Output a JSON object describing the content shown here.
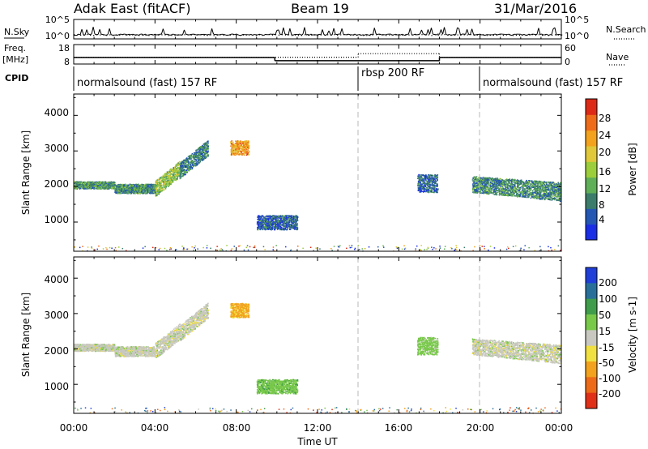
{
  "header": {
    "station": "Adak East (fitACF)",
    "beam": "Beam 19",
    "date": "31/Mar/2016"
  },
  "noise_panel": {
    "left_label": "N.Sky",
    "right_label": "N.Search",
    "left_ticks": [
      "10^5",
      "10^0"
    ],
    "right_ticks": [
      "10^5",
      "10^0"
    ]
  },
  "freq_panel": {
    "left_label_line1": "Freq.",
    "left_label_line2": "[MHz]",
    "left_ticks": [
      "18",
      "8"
    ],
    "right_label": "Nave",
    "right_ticks": [
      "60",
      "0"
    ]
  },
  "cpid_panel": {
    "label": "CPID",
    "segments": [
      {
        "label": "normalsound (fast) 157 RF",
        "start_hour": 0.0
      },
      {
        "label": "rbsp 200 RF",
        "start_hour": 14.0
      },
      {
        "label": "normalsound (fast) 157 RF",
        "start_hour": 20.0
      }
    ]
  },
  "x_axis": {
    "label": "Time UT",
    "tick_labels": [
      "00:00",
      "04:00",
      "08:00",
      "12:00",
      "16:00",
      "20:00",
      "00:00"
    ]
  },
  "power_panel": {
    "ylabel": "Slant Range [km]",
    "cbar_label": "Power [dB]",
    "y_ticks": [
      "1000",
      "2000",
      "3000",
      "4000"
    ],
    "cbar_ticks": [
      "4",
      "8",
      "12",
      "16",
      "20",
      "24",
      "28"
    ]
  },
  "velocity_panel": {
    "ylabel": "Slant Range [km]",
    "cbar_label": "Velocity [m s-1]",
    "y_ticks": [
      "1000",
      "2000",
      "3000",
      "4000"
    ],
    "cbar_ticks": [
      "200",
      "100",
      "50",
      "15",
      "-15",
      "-50",
      "-100",
      "-200"
    ]
  },
  "colors": {
    "power_scale": [
      "#1a2ee6",
      "#2456b4",
      "#3b7c6a",
      "#5fae58",
      "#9ccd3a",
      "#e0c83a",
      "#f2a21c",
      "#ee6b1a",
      "#dd2a16"
    ],
    "velocity_scale": [
      "#1f3fd8",
      "#28709a",
      "#3f9c4a",
      "#78c84a",
      "#c8c8c0",
      "#f0e040",
      "#f2a21c",
      "#ec6a18",
      "#e03018"
    ]
  },
  "chart_data": [
    {
      "type": "line",
      "title": "",
      "ylabel": "N.Sky / N.Search",
      "x_range_hours": [
        0,
        24
      ],
      "y_scale": "log",
      "ylim": [
        1,
        100000
      ],
      "series": [
        {
          "name": "N.Sky",
          "style": "solid",
          "x": [
            0,
            24
          ],
          "y": [
            10,
            10
          ]
        },
        {
          "name": "N.Search",
          "style": "dotted",
          "x": [
            0,
            24
          ],
          "y": [
            10,
            10
          ]
        }
      ]
    },
    {
      "type": "line",
      "title": "",
      "ylabel": "Freq. [MHz] / Nave",
      "x_range_hours": [
        0,
        24
      ],
      "ylim_freq": [
        8,
        18
      ],
      "ylim_nave": [
        0,
        60
      ],
      "series": [
        {
          "name": "Freq.",
          "style": "solid",
          "x": [
            0.0,
            9.9,
            9.9,
            18.0,
            18.0,
            24.0
          ],
          "y": [
            11.4,
            11.4,
            9.7,
            9.7,
            11.4,
            11.4
          ]
        },
        {
          "name": "Nave",
          "style": "dotted",
          "x": [
            0.0,
            14.0,
            14.0,
            18.0,
            18.0,
            24.0
          ],
          "y": [
            21,
            21,
            32,
            32,
            21,
            21
          ]
        }
      ]
    },
    {
      "type": "heatmap",
      "title": "Power [dB]",
      "xlabel": "Time UT",
      "ylabel": "Slant Range [km]",
      "x_range_hours": [
        0,
        24
      ],
      "ylim": [
        180,
        4600
      ],
      "clim": [
        0,
        30
      ],
      "clusters": [
        {
          "t0": 0.0,
          "t1": 2.0,
          "r0": 1950,
          "r1": 2150,
          "mean": 10
        },
        {
          "t0": 2.0,
          "t1": 4.0,
          "r0": 1820,
          "r1": 2080,
          "mean": 9
        },
        {
          "t0": 4.0,
          "t1": 5.2,
          "r0": 1950,
          "r1": 2500,
          "mean": 14
        },
        {
          "t0": 5.2,
          "t1": 6.6,
          "r0": 2450,
          "r1": 3100,
          "mean": 8
        },
        {
          "t0": 7.7,
          "t1": 8.6,
          "r0": 2900,
          "r1": 3300,
          "mean": 22
        },
        {
          "t0": 9.0,
          "t1": 11.0,
          "r0": 800,
          "r1": 1200,
          "mean": 6
        },
        {
          "t0": 16.9,
          "t1": 17.9,
          "r0": 1850,
          "r1": 2350,
          "mean": 6
        },
        {
          "t0": 19.6,
          "t1": 24.0,
          "r0": 1600,
          "r1": 2300,
          "mean": 9
        }
      ]
    },
    {
      "type": "heatmap",
      "title": "Velocity [m s-1]",
      "xlabel": "Time UT",
      "ylabel": "Slant Range [km]",
      "x_range_hours": [
        0,
        24
      ],
      "ylim": [
        180,
        4600
      ],
      "clim": [
        -250,
        250
      ],
      "clusters": [
        {
          "t0": 0.0,
          "t1": 2.0,
          "r0": 1950,
          "r1": 2150,
          "mean": 0
        },
        {
          "t0": 2.0,
          "t1": 4.0,
          "r0": 1800,
          "r1": 2080,
          "mean": 0
        },
        {
          "t0": 4.0,
          "t1": 5.2,
          "r0": 1950,
          "r1": 2500,
          "mean": 0
        },
        {
          "t0": 5.2,
          "t1": 6.6,
          "r0": 2450,
          "r1": 3100,
          "mean": 0
        },
        {
          "t0": 7.7,
          "t1": 8.6,
          "r0": 2900,
          "r1": 3300,
          "mean": -60
        },
        {
          "t0": 9.0,
          "t1": 11.0,
          "r0": 750,
          "r1": 1150,
          "mean": 35
        },
        {
          "t0": 16.9,
          "t1": 17.9,
          "r0": 1850,
          "r1": 2350,
          "mean": 30
        },
        {
          "t0": 19.6,
          "t1": 24.0,
          "r0": 1600,
          "r1": 2300,
          "mean": 0
        }
      ]
    }
  ]
}
